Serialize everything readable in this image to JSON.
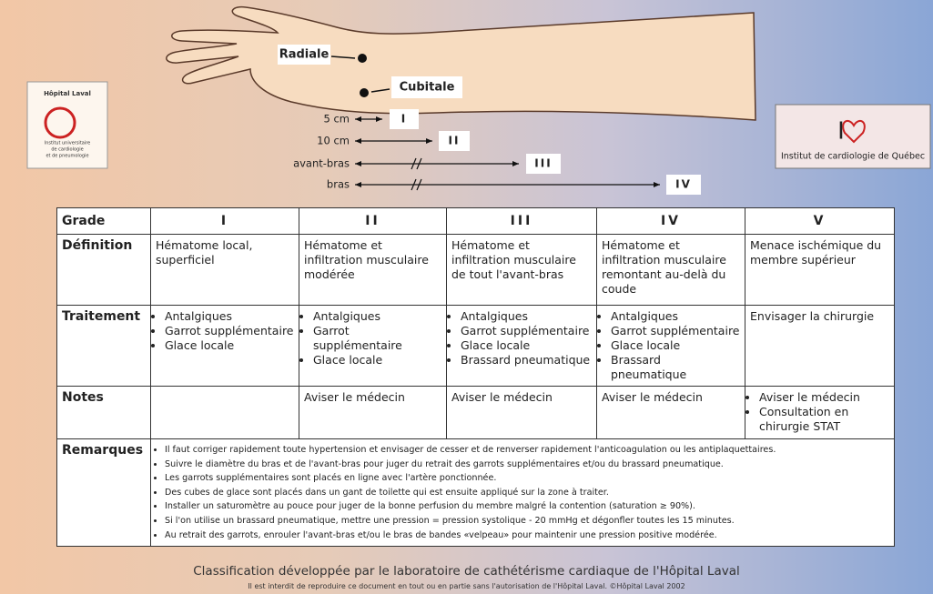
{
  "logos": {
    "left": {
      "name": "Hôpital Laval",
      "subtitle": [
        "Institut universitaire",
        "de cardiologie",
        "et de pneumologie"
      ]
    },
    "right": {
      "mark": "I",
      "name": "Institut de cardiologie de Québec"
    }
  },
  "diagram": {
    "sites": [
      "Radiale",
      "Cubitale"
    ],
    "distances": [
      {
        "label": "5 cm",
        "grade": "I"
      },
      {
        "label": "10 cm",
        "grade": "II"
      },
      {
        "label": "avant-bras",
        "grade": "III"
      },
      {
        "label": "bras",
        "grade": "IV"
      }
    ]
  },
  "table": {
    "header": [
      "Grade",
      "I",
      "II",
      "III",
      "IV",
      "V"
    ],
    "rows": [
      {
        "label": "Définition",
        "cells": [
          "Hématome local, superficiel",
          "Hématome et infiltration musculaire modérée",
          "Hématome et infiltration musculaire de tout l'avant-bras",
          "Hématome et infiltration musculaire remontant au-delà du coude",
          "Menace ischémique du membre supérieur"
        ]
      },
      {
        "label": "Traitement",
        "cells": [
          [
            "Antalgiques",
            "Garrot supplémentaire",
            "Glace locale"
          ],
          [
            "Antalgiques",
            "Garrot supplémentaire",
            "Glace locale"
          ],
          [
            "Antalgiques",
            "Garrot supplémentaire",
            "Glace locale",
            "Brassard pneumatique"
          ],
          [
            "Antalgiques",
            "Garrot supplémentaire",
            "Glace locale",
            "Brassard pneumatique"
          ],
          "Envisager la chirurgie"
        ]
      },
      {
        "label": "Notes",
        "cells": [
          null,
          "Aviser le médecin",
          "Aviser le médecin",
          "Aviser le médecin",
          [
            "Aviser le médecin",
            "Consultation en chirurgie STAT"
          ]
        ]
      }
    ],
    "remarques": {
      "label": "Remarques",
      "items": [
        "Il faut corriger rapidement toute hypertension et envisager de cesser et de renverser rapidement l'anticoagulation ou les antiplaquettaires.",
        "Suivre le diamètre du bras et de l'avant-bras pour juger du retrait des garrots supplémentaires et/ou du brassard pneumatique.",
        "Les garrots supplémentaires sont placés en ligne avec l'artère ponctionnée.",
        "Des cubes de glace sont placés dans un gant de toilette qui est ensuite appliqué sur la zone à traiter.",
        "Installer un saturomètre au pouce pour juger de la bonne perfusion du membre malgré la contention (saturation ≥ 90%).",
        "Si l'on utilise un brassard pneumatique, mettre une pression = pression systolique - 20 mmHg et dégonfler toutes les 15 minutes.",
        "Au retrait des garrots, enrouler l'avant-bras et/ou le bras de bandes «velpeau» pour maintenir une pression positive modérée."
      ]
    }
  },
  "footer": {
    "title": "Classification développée par le laboratoire de cathétérisme cardiaque de l'Hôpital Laval",
    "note": "Il est interdit de reproduire ce document en tout ou en partie sans l'autorisation de l'Hôpital Laval. ©Hôpital Laval 2002"
  }
}
